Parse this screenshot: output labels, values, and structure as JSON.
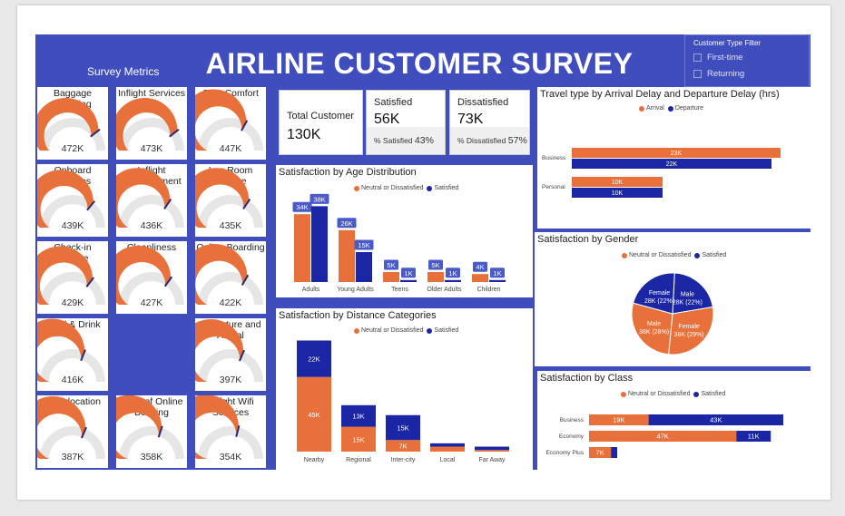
{
  "header": {
    "title": "AIRLINE CUSTOMER SURVEY",
    "subtitle": "Survey Metrics"
  },
  "filter": {
    "title": "Customer Type Filter",
    "options": [
      "First-time",
      "Returning"
    ]
  },
  "colors": {
    "header_blue": "#3f4dbd",
    "orange": "#e8703a",
    "navy": "#1a26a3",
    "gauge_track": "#e6e6e6",
    "needle": "#2c2a6e"
  },
  "metrics": [
    {
      "label": "Baggage Handling",
      "value": "472K",
      "fraction": 0.79
    },
    {
      "label": "Inflight Services",
      "value": "473K",
      "fraction": 0.79
    },
    {
      "label": "Seat Comfort",
      "value": "447K",
      "fraction": 0.66
    },
    {
      "label": "Onboard Services",
      "value": "439K",
      "fraction": 0.72
    },
    {
      "label": "Inflight Entertainment",
      "value": "436K",
      "fraction": 0.69
    },
    {
      "label": "Leg Room Service",
      "value": "435K",
      "fraction": 0.69
    },
    {
      "label": "Check-in Service",
      "value": "429K",
      "fraction": 0.71
    },
    {
      "label": "Cleanliness",
      "value": "427K",
      "fraction": 0.7
    },
    {
      "label": "Online Boarding",
      "value": "422K",
      "fraction": 0.67
    },
    {
      "label": "Food & Drink",
      "value": "416K",
      "fraction": 0.62
    },
    {
      "label": "Departure and Arrival",
      "value": "397K",
      "fraction": 0.63
    },
    {
      "label": "Gate location",
      "value": "387K",
      "fraction": 0.63
    },
    {
      "label": "Ease of Online Booking",
      "value": "358K",
      "fraction": 0.6
    },
    {
      "label": "Inflight Wifi Services",
      "value": "354K",
      "fraction": 0.58
    }
  ],
  "cards": {
    "total": {
      "label": "Total Customer",
      "value": "130K"
    },
    "satisfied": {
      "label": "Satisfied",
      "value": "56K",
      "pct_label": "% Satisfied",
      "pct": "43%"
    },
    "dissatisfied": {
      "label": "Dissatisfied",
      "value": "73K",
      "pct_label": "% Dissatisfied",
      "pct": "57%"
    }
  },
  "chart_data": [
    {
      "id": "age",
      "type": "bar",
      "title": "Satisfaction by Age Distribution",
      "categories": [
        "Adults",
        "Young Adults",
        "Teens",
        "Older Adults",
        "Children"
      ],
      "series": [
        {
          "name": "Neutral or Dissatisfied",
          "values": [
            34,
            26,
            5,
            5,
            4
          ],
          "labels": [
            "34K",
            "26K",
            "5K",
            "5K",
            "4K"
          ]
        },
        {
          "name": "Satisfied",
          "values": [
            38,
            15,
            1,
            1,
            1
          ],
          "labels": [
            "38K",
            "15K",
            "1K",
            "1K",
            "1K"
          ]
        }
      ],
      "ylim": [
        0,
        40
      ],
      "legend": "top-center"
    },
    {
      "id": "distance",
      "type": "bar",
      "stacked": true,
      "title": "Satisfaction by Distance Categories",
      "categories": [
        "Nearby",
        "Regional",
        "Inter-city",
        "Local",
        "Far Away"
      ],
      "series": [
        {
          "name": "Neutral or Dissatisfied",
          "values": [
            45,
            15,
            7,
            3,
            1
          ],
          "labels": [
            "45K",
            "15K",
            "7K",
            "",
            ""
          ]
        },
        {
          "name": "Satisfied",
          "values": [
            22,
            13,
            15,
            2,
            2
          ],
          "labels": [
            "22K",
            "13K",
            "15K",
            "",
            ""
          ]
        }
      ],
      "ylim": [
        0,
        70
      ],
      "legend": "top-center"
    },
    {
      "id": "travel",
      "type": "bar",
      "orientation": "horizontal",
      "title": "Travel type by Arrival Delay and Departure Delay (hrs)",
      "categories": [
        "Business",
        "Personal"
      ],
      "series": [
        {
          "name": "Arrival",
          "values": [
            23,
            10
          ],
          "labels": [
            "23K",
            "10K"
          ]
        },
        {
          "name": "Departure",
          "values": [
            22,
            10
          ],
          "labels": [
            "22K",
            "10K"
          ]
        }
      ],
      "xlim": [
        0,
        24
      ],
      "legend": "top-center"
    },
    {
      "id": "gender",
      "type": "pie",
      "title": "Satisfaction by Gender",
      "slices": [
        {
          "name": "Male",
          "status": "Satisfied",
          "value": 28,
          "label": "28K (22%)"
        },
        {
          "name": "Female",
          "status": "Neutral or Dissatisfied",
          "value": 38,
          "label": "38K (29%)"
        },
        {
          "name": "Male",
          "status": "Neutral or Dissatisfied",
          "value": 36,
          "label": "36K (28%)"
        },
        {
          "name": "Female",
          "status": "Satisfied",
          "value": 28,
          "label": "28K (22%)"
        }
      ],
      "legend_series": [
        "Neutral or Dissatisfied",
        "Satisfied"
      ],
      "legend": "top-center"
    },
    {
      "id": "class",
      "type": "bar",
      "orientation": "horizontal",
      "stacked": true,
      "title": "Satisfaction by Class",
      "categories": [
        "Business",
        "Economy",
        "Economy Plus"
      ],
      "series": [
        {
          "name": "Neutral or Dissatisfied",
          "values": [
            19,
            47,
            7
          ],
          "labels": [
            "19K",
            "47K",
            "7K"
          ]
        },
        {
          "name": "Satisfied",
          "values": [
            43,
            11,
            2
          ],
          "labels": [
            "43K",
            "11K",
            ""
          ]
        }
      ],
      "xlim": [
        0,
        62
      ],
      "legend": "top-center"
    }
  ]
}
